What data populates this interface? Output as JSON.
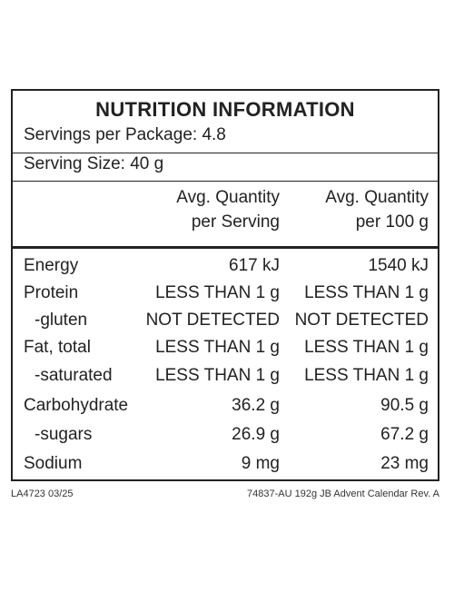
{
  "panel": {
    "title": "NUTRITION INFORMATION",
    "servings_per_package": "Servings per Package: 4.8",
    "serving_size": "Serving Size: 40 g",
    "columns": [
      {
        "line1": "Avg. Quantity",
        "line2": "per Serving"
      },
      {
        "line1": "Avg. Quantity",
        "line2": "per 100 g"
      }
    ],
    "rows": [
      {
        "label": "Energy",
        "per_serving": "617 kJ",
        "per_100g": "1540 kJ"
      },
      {
        "label": "Protein",
        "per_serving": "LESS THAN 1 g",
        "per_100g": "LESS THAN 1 g"
      },
      {
        "label": "-gluten",
        "per_serving": "NOT DETECTED",
        "per_100g": "NOT DETECTED"
      },
      {
        "label": "Fat, total",
        "per_serving": "LESS THAN 1 g",
        "per_100g": "LESS THAN 1 g"
      },
      {
        "label": "-saturated",
        "per_serving": "LESS THAN 1 g",
        "per_100g": "LESS THAN 1 g"
      },
      {
        "label": "Carbohydrate",
        "per_serving": "36.2 g",
        "per_100g": "90.5 g"
      },
      {
        "label": "-sugars",
        "per_serving": "26.9 g",
        "per_100g": "67.2 g"
      },
      {
        "label": "Sodium",
        "per_serving": "9 mg",
        "per_100g": "23 mg"
      }
    ]
  },
  "footer": {
    "left_code": "LA4723 03/25",
    "right_code": "74837-AU 192g JB Advent Calendar Rev. A"
  }
}
